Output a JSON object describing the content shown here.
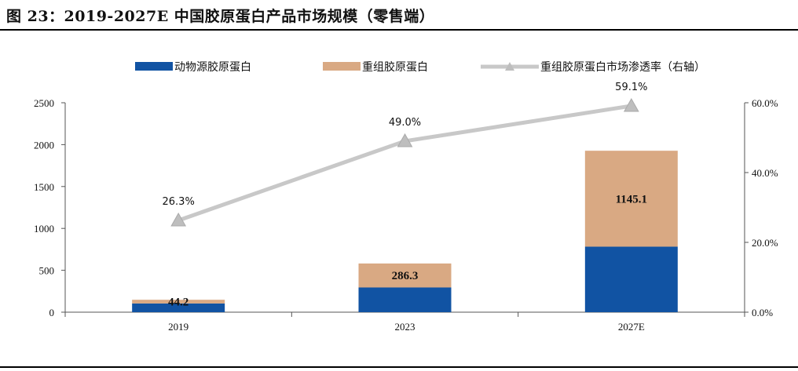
{
  "title": "图 23：2019-2027E 中国胶原蛋白产品市场规模（零售端）",
  "chart_data": {
    "type": "bar",
    "stacked": true,
    "categories": [
      "2019",
      "2023",
      "2027E"
    ],
    "series": [
      {
        "name": "动物源胶原蛋白",
        "type": "bar",
        "axis": "left",
        "color": "#1153A3",
        "values": [
          104,
          295,
          782
        ]
      },
      {
        "name": "重组胶原蛋白",
        "type": "bar",
        "axis": "left",
        "color": "#D9A983",
        "values": [
          44.2,
          286.3,
          1145.1
        ],
        "labels": [
          "44.2",
          "286.3",
          "1145.1"
        ]
      },
      {
        "name": "重组胶原蛋白市场渗透率（右轴）",
        "type": "line",
        "axis": "right",
        "color": "#C8C8C8",
        "values": [
          26.3,
          49.0,
          59.1
        ],
        "labels": [
          "26.3%",
          "49.0%",
          "59.1%"
        ]
      }
    ],
    "left_axis": {
      "min": 0,
      "max": 2500,
      "ticks": [
        "0",
        "500",
        "1000",
        "1500",
        "2000",
        "2500"
      ]
    },
    "right_axis": {
      "min": 0,
      "max": 60,
      "ticks": [
        "0.0%",
        "20.0%",
        "40.0%",
        "60.0%"
      ]
    },
    "legend": "top"
  }
}
